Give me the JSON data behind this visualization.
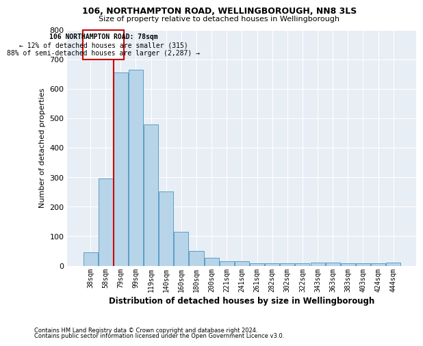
{
  "title1": "106, NORTHAMPTON ROAD, WELLINGBOROUGH, NN8 3LS",
  "title2": "Size of property relative to detached houses in Wellingborough",
  "xlabel": "Distribution of detached houses by size in Wellingborough",
  "ylabel": "Number of detached properties",
  "categories": [
    "38sqm",
    "58sqm",
    "79sqm",
    "99sqm",
    "119sqm",
    "140sqm",
    "160sqm",
    "180sqm",
    "200sqm",
    "221sqm",
    "241sqm",
    "261sqm",
    "282sqm",
    "302sqm",
    "322sqm",
    "343sqm",
    "363sqm",
    "383sqm",
    "403sqm",
    "424sqm",
    "444sqm"
  ],
  "values": [
    45,
    295,
    655,
    665,
    480,
    252,
    115,
    50,
    27,
    15,
    15,
    8,
    7,
    7,
    7,
    10,
    10,
    7,
    7,
    7,
    10
  ],
  "bar_color": "#b8d4e8",
  "bar_edge_color": "#5a9ec8",
  "background_color": "#e8eef5",
  "grid_color": "#ffffff",
  "annotation_box_text1": "106 NORTHAMPTON ROAD: 78sqm",
  "annotation_box_text2": "← 12% of detached houses are smaller (315)",
  "annotation_box_text3": "88% of semi-detached houses are larger (2,287) →",
  "annotation_line_color": "#cc0000",
  "annotation_box_edge_color": "#cc0000",
  "ylim": [
    0,
    800
  ],
  "yticks": [
    0,
    100,
    200,
    300,
    400,
    500,
    600,
    700,
    800
  ],
  "footnote1": "Contains HM Land Registry data © Crown copyright and database right 2024.",
  "footnote2": "Contains public sector information licensed under the Open Government Licence v3.0."
}
